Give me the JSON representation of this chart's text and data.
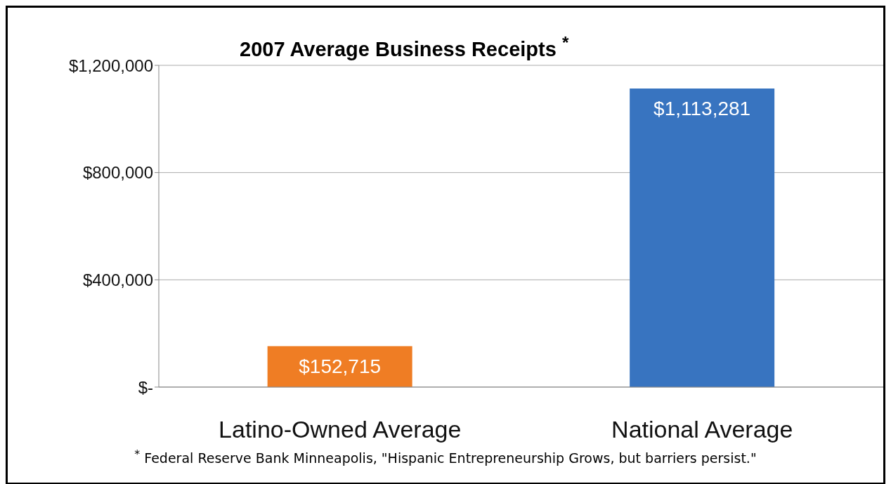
{
  "chart_data": {
    "type": "bar",
    "title": "2007 Average Business Receipts $^{*}$",
    "categories": [
      "Latino-Owned Average",
      "National Average"
    ],
    "values": [
      152715,
      1113281
    ],
    "colors": [
      "#ef7d24",
      "#3874c0"
    ],
    "value_labels": [
      "$152,715",
      "$1,113,281"
    ],
    "ylim": [
      0,
      1200000
    ],
    "yticks": [
      {
        "value": 0,
        "label": "$-"
      },
      {
        "value": 400000,
        "label": "$400,000"
      },
      {
        "value": 800000,
        "label": "$800,000"
      },
      {
        "value": 1200000,
        "label": "$1,200,000"
      }
    ],
    "grid": "y",
    "annotations": [
      "$^{*}$ Federal Reserve Bank Minneapolis, \"Hispanic Entrepreneurship Grows, but barriers persist.\""
    ]
  }
}
